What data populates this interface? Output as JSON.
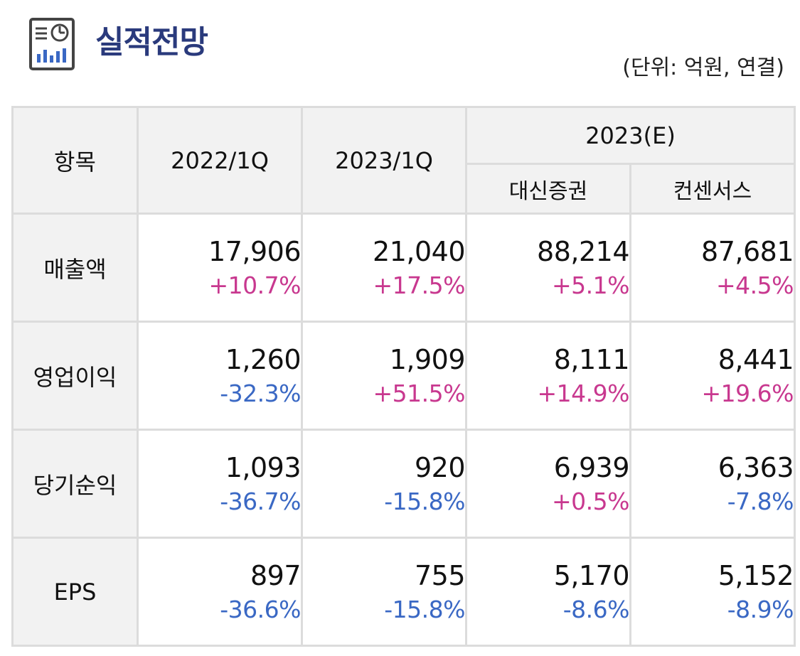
{
  "header": {
    "title": "실적전망",
    "unit": "(단위: 억원, 연결)",
    "icon": "report-chart-icon"
  },
  "table": {
    "col_item": "항목",
    "col_2022": "2022/1Q",
    "col_2023": "2023/1Q",
    "col_est": "2023(E)",
    "sub_daishin": "대신증권",
    "sub_consensus": "컨센서스",
    "rows": [
      {
        "label": "매출액",
        "cells": [
          {
            "value": "17,906",
            "change": "+10.7%",
            "dir": "pos"
          },
          {
            "value": "21,040",
            "change": "+17.5%",
            "dir": "pos"
          },
          {
            "value": "88,214",
            "change": "+5.1%",
            "dir": "pos"
          },
          {
            "value": "87,681",
            "change": "+4.5%",
            "dir": "pos"
          }
        ]
      },
      {
        "label": "영업이익",
        "cells": [
          {
            "value": "1,260",
            "change": "-32.3%",
            "dir": "neg"
          },
          {
            "value": "1,909",
            "change": "+51.5%",
            "dir": "pos"
          },
          {
            "value": "8,111",
            "change": "+14.9%",
            "dir": "pos"
          },
          {
            "value": "8,441",
            "change": "+19.6%",
            "dir": "pos"
          }
        ]
      },
      {
        "label": "당기순익",
        "cells": [
          {
            "value": "1,093",
            "change": "-36.7%",
            "dir": "neg"
          },
          {
            "value": "920",
            "change": "-15.8%",
            "dir": "neg"
          },
          {
            "value": "6,939",
            "change": "+0.5%",
            "dir": "pos"
          },
          {
            "value": "6,363",
            "change": "-7.8%",
            "dir": "neg"
          }
        ]
      },
      {
        "label": "EPS",
        "cells": [
          {
            "value": "897",
            "change": "-36.6%",
            "dir": "neg"
          },
          {
            "value": "755",
            "change": "-15.8%",
            "dir": "neg"
          },
          {
            "value": "5,170",
            "change": "-8.6%",
            "dir": "neg"
          },
          {
            "value": "5,152",
            "change": "-8.9%",
            "dir": "neg"
          }
        ]
      }
    ]
  },
  "colors": {
    "title": "#2a3a7c",
    "positive": "#c8388f",
    "negative": "#3a68c4",
    "header_bg": "#f2f2f2",
    "border": "#dcdcdc"
  }
}
